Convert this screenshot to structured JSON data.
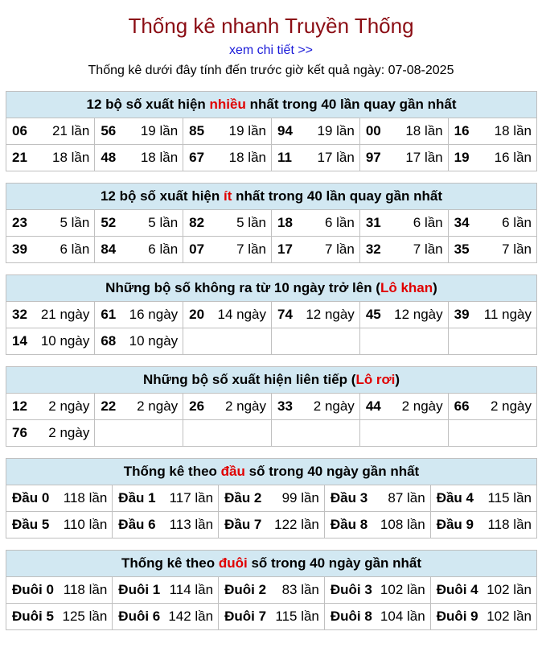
{
  "header": {
    "title": "Thống kê nhanh Truyền Thống",
    "link": "xem chi tiết >>",
    "note": "Thống kê dưới đây tính đến trước giờ kết quả ngày: 07-08-2025"
  },
  "sections": {
    "most": {
      "title_pre": "12 bộ số xuất hiện ",
      "title_hl": "nhiều",
      "title_post": " nhất trong 40 lần quay gần nhất",
      "rows": [
        [
          [
            "06",
            "21 lần"
          ],
          [
            "56",
            "19 lần"
          ],
          [
            "85",
            "19 lần"
          ],
          [
            "94",
            "19 lần"
          ],
          [
            "00",
            "18 lần"
          ],
          [
            "16",
            "18 lần"
          ]
        ],
        [
          [
            "21",
            "18 lần"
          ],
          [
            "48",
            "18 lần"
          ],
          [
            "67",
            "18 lần"
          ],
          [
            "11",
            "17 lần"
          ],
          [
            "97",
            "17 lần"
          ],
          [
            "19",
            "16 lần"
          ]
        ]
      ]
    },
    "least": {
      "title_pre": "12 bộ số xuất hiện ",
      "title_hl": "ít",
      "title_post": " nhất trong 40 lần quay gần nhất",
      "rows": [
        [
          [
            "23",
            "5 lần"
          ],
          [
            "52",
            "5 lần"
          ],
          [
            "82",
            "5 lần"
          ],
          [
            "18",
            "6 lần"
          ],
          [
            "31",
            "6 lần"
          ],
          [
            "34",
            "6 lần"
          ]
        ],
        [
          [
            "39",
            "6 lần"
          ],
          [
            "84",
            "6 lần"
          ],
          [
            "07",
            "7 lần"
          ],
          [
            "17",
            "7 lần"
          ],
          [
            "32",
            "7 lần"
          ],
          [
            "35",
            "7 lần"
          ]
        ]
      ]
    },
    "khan": {
      "title_pre": "Những bộ số không ra từ 10 ngày trở lên (",
      "title_hl": "Lô khan",
      "title_post": ")",
      "rows": [
        [
          [
            "32",
            "21 ngày"
          ],
          [
            "61",
            "16 ngày"
          ],
          [
            "20",
            "14 ngày"
          ],
          [
            "74",
            "12 ngày"
          ],
          [
            "45",
            "12 ngày"
          ],
          [
            "39",
            "11 ngày"
          ]
        ],
        [
          [
            "14",
            "10 ngày"
          ],
          [
            "68",
            "10 ngày"
          ],
          [
            "",
            ""
          ],
          [
            "",
            ""
          ],
          [
            "",
            ""
          ],
          [
            "",
            ""
          ]
        ]
      ]
    },
    "roi": {
      "title_pre": "Những bộ số xuất hiện liên tiếp (",
      "title_hl": "Lô rơi",
      "title_post": ")",
      "rows": [
        [
          [
            "12",
            "2 ngày"
          ],
          [
            "22",
            "2 ngày"
          ],
          [
            "26",
            "2 ngày"
          ],
          [
            "33",
            "2 ngày"
          ],
          [
            "44",
            "2 ngày"
          ],
          [
            "66",
            "2 ngày"
          ]
        ],
        [
          [
            "76",
            "2 ngày"
          ],
          [
            "",
            ""
          ],
          [
            "",
            ""
          ],
          [
            "",
            ""
          ],
          [
            "",
            ""
          ],
          [
            "",
            ""
          ]
        ]
      ]
    },
    "dau": {
      "title_pre": "Thống kê theo ",
      "title_hl": "đầu",
      "title_post": " số trong 40 ngày gần nhất",
      "rows": [
        [
          [
            "Đầu 0",
            "118 lần"
          ],
          [
            "Đầu 1",
            "117 lần"
          ],
          [
            "Đầu 2",
            "99 lần"
          ],
          [
            "Đầu 3",
            "87 lần"
          ],
          [
            "Đầu 4",
            "115 lần"
          ]
        ],
        [
          [
            "Đầu 5",
            "110 lần"
          ],
          [
            "Đầu 6",
            "113 lần"
          ],
          [
            "Đầu 7",
            "122 lần"
          ],
          [
            "Đầu 8",
            "108 lần"
          ],
          [
            "Đầu 9",
            "118 lần"
          ]
        ]
      ]
    },
    "duoi": {
      "title_pre": "Thống kê theo ",
      "title_hl": "đuôi",
      "title_post": " số trong 40 ngày gần nhất",
      "rows": [
        [
          [
            "Đuôi 0",
            "118 lần"
          ],
          [
            "Đuôi 1",
            "114 lần"
          ],
          [
            "Đuôi 2",
            "83 lần"
          ],
          [
            "Đuôi 3",
            "102 lần"
          ],
          [
            "Đuôi 4",
            "102 lần"
          ]
        ],
        [
          [
            "Đuôi 5",
            "125 lần"
          ],
          [
            "Đuôi 6",
            "142 lần"
          ],
          [
            "Đuôi 7",
            "115 lần"
          ],
          [
            "Đuôi 8",
            "104 lần"
          ],
          [
            "Đuôi 9",
            "102 lần"
          ]
        ]
      ]
    }
  },
  "colors": {
    "title": "#8b0d14",
    "link": "#1a1ad8",
    "highlight": "#e00000",
    "header_bg": "#d2e8f2",
    "border": "#c0c0c0"
  }
}
